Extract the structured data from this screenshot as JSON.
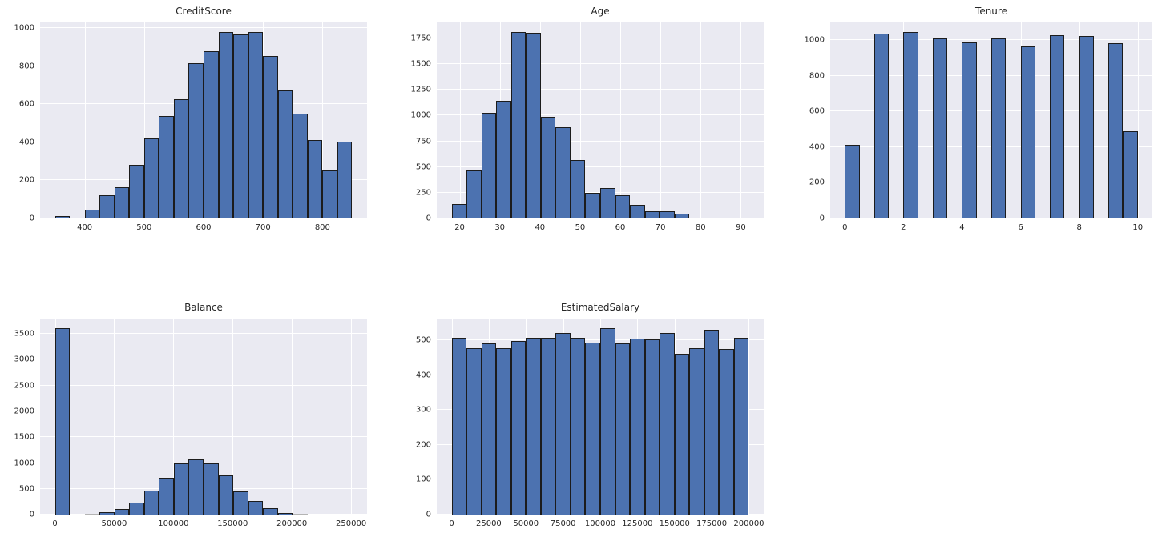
{
  "figure": {
    "background": "#ffffff",
    "plot_background": "#eaeaf2",
    "grid_color": "#ffffff",
    "bar_fill": "#4c72b0",
    "bar_edge": "#1c1c1c",
    "text_color": "#262626"
  },
  "chart_data": [
    {
      "type": "bar",
      "subtype": "histogram",
      "title": "CreditScore",
      "xlabel": "",
      "ylabel": "",
      "grid": true,
      "legend": false,
      "xlim": [
        325,
        875
      ],
      "ylim": [
        0,
        1030
      ],
      "xticks": [
        400,
        500,
        600,
        700,
        800
      ],
      "yticks": [
        0,
        200,
        400,
        600,
        800,
        1000
      ],
      "bars": [
        [
          350,
          375,
          12
        ],
        [
          375,
          400,
          2
        ],
        [
          400,
          425,
          45
        ],
        [
          425,
          450,
          120
        ],
        [
          450,
          475,
          165
        ],
        [
          475,
          500,
          283
        ],
        [
          500,
          525,
          420
        ],
        [
          525,
          550,
          538
        ],
        [
          550,
          575,
          625
        ],
        [
          575,
          600,
          815
        ],
        [
          600,
          625,
          878
        ],
        [
          625,
          650,
          980
        ],
        [
          650,
          675,
          966
        ],
        [
          675,
          700,
          980
        ],
        [
          700,
          725,
          852
        ],
        [
          725,
          750,
          672
        ],
        [
          750,
          775,
          552
        ],
        [
          775,
          800,
          413
        ],
        [
          800,
          825,
          253
        ],
        [
          825,
          850,
          403
        ]
      ]
    },
    {
      "type": "bar",
      "subtype": "histogram",
      "title": "Age",
      "xlabel": "",
      "ylabel": "",
      "grid": true,
      "legend": false,
      "xlim": [
        14.3,
        95.7
      ],
      "ylim": [
        0,
        1906
      ],
      "xticks": [
        20,
        30,
        40,
        50,
        60,
        70,
        80,
        90
      ],
      "yticks": [
        0,
        250,
        500,
        750,
        1000,
        1250,
        1500,
        1750
      ],
      "bars": [
        [
          18.0,
          21.7,
          140
        ],
        [
          21.7,
          25.4,
          465
        ],
        [
          25.4,
          29.1,
          1030
        ],
        [
          29.1,
          32.8,
          1145
        ],
        [
          32.8,
          36.5,
          1815
        ],
        [
          36.5,
          40.2,
          1805
        ],
        [
          40.2,
          43.9,
          985
        ],
        [
          43.9,
          47.6,
          885
        ],
        [
          47.6,
          51.3,
          565
        ],
        [
          51.3,
          55.0,
          252
        ],
        [
          55.0,
          58.7,
          293
        ],
        [
          58.7,
          62.4,
          224
        ],
        [
          62.4,
          66.1,
          131
        ],
        [
          66.1,
          69.8,
          74
        ],
        [
          69.8,
          73.5,
          74
        ],
        [
          73.5,
          77.2,
          45
        ],
        [
          77.2,
          80.9,
          8
        ],
        [
          80.9,
          84.6,
          5
        ],
        [
          84.6,
          88.3,
          0
        ],
        [
          88.3,
          92.0,
          0
        ]
      ]
    },
    {
      "type": "bar",
      "subtype": "histogram",
      "title": "Tenure",
      "xlabel": "",
      "ylabel": "",
      "grid": true,
      "legend": false,
      "xlim": [
        -0.5,
        10.5
      ],
      "ylim": [
        0,
        1100
      ],
      "xticks": [
        0,
        2,
        4,
        6,
        8,
        10
      ],
      "yticks": [
        0,
        200,
        400,
        600,
        800,
        1000
      ],
      "bars": [
        [
          0,
          0.5,
          413
        ],
        [
          1,
          1.5,
          1035
        ],
        [
          2,
          2.5,
          1048
        ],
        [
          3,
          3.5,
          1009
        ],
        [
          4,
          4.5,
          989
        ],
        [
          5,
          5.5,
          1012
        ],
        [
          6,
          6.5,
          967
        ],
        [
          7,
          7.5,
          1028
        ],
        [
          8,
          8.5,
          1025
        ],
        [
          9,
          9.5,
          984
        ],
        [
          9.5,
          10,
          490
        ]
      ]
    },
    {
      "type": "bar",
      "subtype": "histogram",
      "title": "Balance",
      "xlabel": "",
      "ylabel": "",
      "grid": true,
      "legend": false,
      "xlim": [
        -12545,
        263443
      ],
      "ylim": [
        0,
        3798
      ],
      "xticks": [
        0,
        50000,
        100000,
        150000,
        200000,
        250000
      ],
      "yticks": [
        0,
        500,
        1000,
        1500,
        2000,
        2500,
        3000,
        3500
      ],
      "bars": [
        [
          0,
          12545,
          3617
        ],
        [
          12545,
          25090,
          0
        ],
        [
          25090,
          37635,
          15
        ],
        [
          37635,
          50180,
          45
        ],
        [
          50180,
          62725,
          110
        ],
        [
          62725,
          75270,
          240
        ],
        [
          75270,
          87815,
          460
        ],
        [
          87815,
          100360,
          720
        ],
        [
          100360,
          112905,
          1000
        ],
        [
          112905,
          125450,
          1070
        ],
        [
          125450,
          137995,
          1000
        ],
        [
          137995,
          150540,
          755
        ],
        [
          150540,
          163085,
          445
        ],
        [
          163085,
          175630,
          262
        ],
        [
          175630,
          188175,
          122
        ],
        [
          188175,
          200720,
          33
        ],
        [
          200720,
          213265,
          18
        ],
        [
          213265,
          225810,
          0
        ],
        [
          225810,
          238355,
          0
        ],
        [
          238355,
          250900,
          0
        ]
      ]
    },
    {
      "type": "bar",
      "subtype": "histogram",
      "title": "EstimatedSalary",
      "xlabel": "",
      "ylabel": "",
      "grid": true,
      "legend": false,
      "xlim": [
        -9990,
        209990
      ],
      "ylim": [
        0,
        562
      ],
      "xticks": [
        0,
        25000,
        50000,
        75000,
        100000,
        125000,
        150000,
        175000,
        200000
      ],
      "yticks": [
        0,
        100,
        200,
        300,
        400,
        500
      ],
      "bars": [
        [
          0,
          10000,
          508
        ],
        [
          10000,
          20000,
          477
        ],
        [
          20000,
          30000,
          491
        ],
        [
          30000,
          40000,
          477
        ],
        [
          40000,
          50000,
          497
        ],
        [
          50000,
          60000,
          508
        ],
        [
          60000,
          70000,
          506
        ],
        [
          70000,
          80000,
          520
        ],
        [
          80000,
          90000,
          508
        ],
        [
          90000,
          100000,
          493
        ],
        [
          100000,
          110000,
          535
        ],
        [
          110000,
          120000,
          491
        ],
        [
          120000,
          130000,
          504
        ],
        [
          130000,
          140000,
          502
        ],
        [
          140000,
          150000,
          520
        ],
        [
          150000,
          160000,
          462
        ],
        [
          160000,
          170000,
          477
        ],
        [
          170000,
          180000,
          531
        ],
        [
          180000,
          190000,
          475
        ],
        [
          190000,
          200000,
          508
        ]
      ]
    }
  ]
}
